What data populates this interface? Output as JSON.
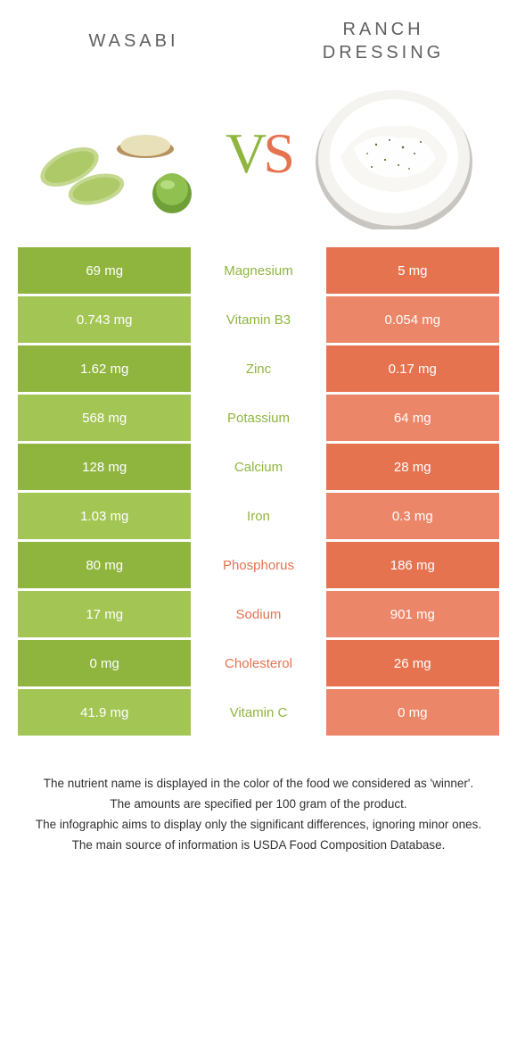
{
  "header": {
    "left_title": "Wasabi",
    "right_title": "Ranch dressing",
    "vs_v": "V",
    "vs_s": "S"
  },
  "colors": {
    "green_dark": "#8fb53f",
    "green_light": "#a3c554",
    "orange_dark": "#e57350",
    "orange_light": "#ec8668",
    "label_green": "#8fb53f",
    "label_orange": "#e57350"
  },
  "rows": [
    {
      "left": "69 mg",
      "label": "Magnesium",
      "right": "5 mg",
      "winner": "left"
    },
    {
      "left": "0.743 mg",
      "label": "Vitamin B3",
      "right": "0.054 mg",
      "winner": "left"
    },
    {
      "left": "1.62 mg",
      "label": "Zinc",
      "right": "0.17 mg",
      "winner": "left"
    },
    {
      "left": "568 mg",
      "label": "Potassium",
      "right": "64 mg",
      "winner": "left"
    },
    {
      "left": "128 mg",
      "label": "Calcium",
      "right": "28 mg",
      "winner": "left"
    },
    {
      "left": "1.03 mg",
      "label": "Iron",
      "right": "0.3 mg",
      "winner": "left"
    },
    {
      "left": "80 mg",
      "label": "Phosphorus",
      "right": "186 mg",
      "winner": "right"
    },
    {
      "left": "17 mg",
      "label": "Sodium",
      "right": "901 mg",
      "winner": "right"
    },
    {
      "left": "0 mg",
      "label": "Cholesterol",
      "right": "26 mg",
      "winner": "right"
    },
    {
      "left": "41.9 mg",
      "label": "Vitamin C",
      "right": "0 mg",
      "winner": "left"
    }
  ],
  "footer": {
    "l1": "The nutrient name is displayed in the color of the food we considered as 'winner'.",
    "l2": "The amounts are specified per 100 gram of the product.",
    "l3": "The infographic aims to display only the significant differences, ignoring minor ones.",
    "l4": "The main source of information is USDA Food Composition Database."
  }
}
